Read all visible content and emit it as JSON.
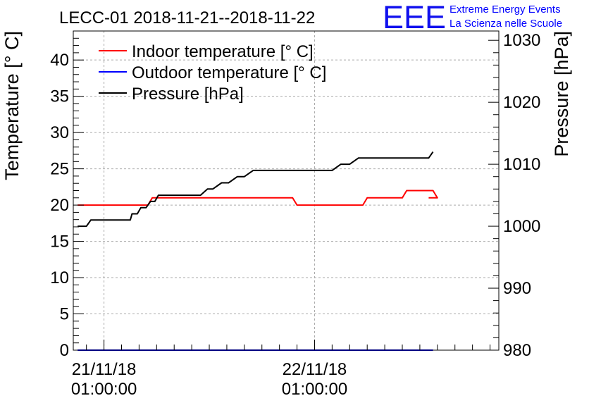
{
  "chart_data": {
    "type": "line",
    "title": "LECC-01 2018-11-21--2018-11-22",
    "ylabel_left": "Temperature [° C]",
    "ylabel_right": "Pressure [hPa]",
    "ylim_left": [
      0,
      44
    ],
    "ylim_right": [
      980,
      1031.5
    ],
    "xlim_hours": [
      -3.5,
      45
    ],
    "y_ticks_left": [
      "0",
      "5",
      "10",
      "15",
      "20",
      "25",
      "30",
      "35",
      "40"
    ],
    "y_ticks_right": [
      "980",
      "990",
      "1000",
      "1010",
      "1020",
      "1030"
    ],
    "x_ticks": [
      {
        "hours": 0,
        "line1": "21/11/18",
        "line2": "01:00:00"
      },
      {
        "hours": 24,
        "line1": "22/11/18",
        "line2": "01:00:00"
      }
    ],
    "grid": true,
    "legend": [
      {
        "label": "Indoor temperature [° C]",
        "color": "#ff0000"
      },
      {
        "label": "Outdoor temperature [° C]",
        "color": "#0000ff"
      },
      {
        "label": "Pressure [hPa]",
        "color": "#000000"
      }
    ],
    "series": [
      {
        "name": "Indoor temperature [° C]",
        "axis": "left",
        "color": "#ff0000",
        "x": [
          -3,
          5,
          5.5,
          6.5,
          7,
          21.5,
          22,
          29.5,
          30,
          34,
          34.5,
          37.5,
          38,
          37
        ],
        "y": [
          20,
          20,
          21,
          21,
          21,
          21,
          20,
          20,
          21,
          21,
          22,
          22,
          21,
          21
        ]
      },
      {
        "name": "Outdoor temperature [° C]",
        "axis": "left",
        "color": "#0000ff",
        "x": [
          -3,
          37.5
        ],
        "y": [
          0,
          0
        ]
      },
      {
        "name": "Pressure [hPa]",
        "axis": "right",
        "color": "#000000",
        "x": [
          -3,
          -2,
          -1.5,
          0,
          1,
          2,
          3,
          3.2,
          3.8,
          4.2,
          4.8,
          5.3,
          5.8,
          6.2,
          6.8,
          7.2,
          8,
          9,
          10,
          11,
          11.8,
          12.4,
          13.4,
          14.2,
          15.2,
          16,
          17,
          18,
          19,
          20,
          21,
          22,
          23,
          24,
          25,
          26,
          27,
          28,
          29,
          30,
          31,
          32,
          33,
          34,
          35,
          36,
          37,
          37.5
        ],
        "y": [
          1000,
          1000,
          1001,
          1001,
          1001,
          1001,
          1001,
          1002,
          1002,
          1003,
          1003,
          1004,
          1004,
          1005,
          1005,
          1005,
          1005,
          1005,
          1005,
          1005,
          1006,
          1006,
          1007,
          1007,
          1008,
          1008,
          1009,
          1009,
          1009,
          1009,
          1009,
          1009,
          1009,
          1009,
          1009,
          1009,
          1010,
          1010,
          1011,
          1011,
          1011,
          1011,
          1011,
          1011,
          1011,
          1011,
          1011,
          1012
        ]
      }
    ]
  },
  "logo": {
    "text": "EEE",
    "line1": "Extreme Energy Events",
    "line2": "La Scienza nelle Scuole",
    "color": "#0000ff"
  }
}
